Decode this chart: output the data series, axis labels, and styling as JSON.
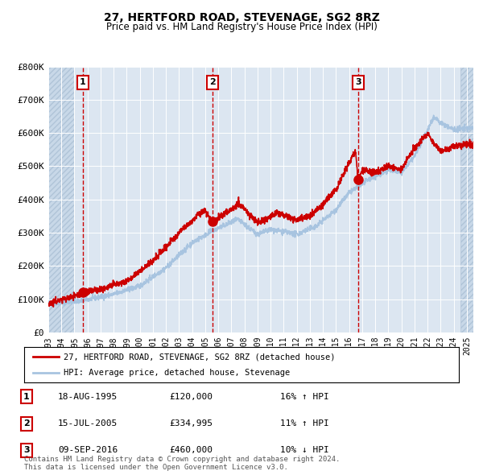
{
  "title1": "27, HERTFORD ROAD, STEVENAGE, SG2 8RZ",
  "title2": "Price paid vs. HM Land Registry's House Price Index (HPI)",
  "xlabel": "",
  "ylabel": "",
  "ylim": [
    0,
    800000
  ],
  "yticks": [
    0,
    100000,
    200000,
    300000,
    400000,
    500000,
    600000,
    700000,
    800000
  ],
  "ytick_labels": [
    "£0",
    "£100K",
    "£200K",
    "£300K",
    "£400K",
    "£500K",
    "£600K",
    "£700K",
    "£800K"
  ],
  "background_color": "#dce6f1",
  "plot_bg_color": "#dce6f1",
  "hatch_color": "#b8c8dc",
  "grid_color": "#ffffff",
  "hpi_line_color": "#a8c4e0",
  "price_line_color": "#cc0000",
  "sale_marker_color": "#cc0000",
  "vline_color": "#cc0000",
  "box_color": "#cc0000",
  "sales": [
    {
      "date_num": 1995.633,
      "price": 120000,
      "label": "1"
    },
    {
      "date_num": 2005.542,
      "price": 334995,
      "label": "2"
    },
    {
      "date_num": 2016.692,
      "price": 460000,
      "label": "3"
    }
  ],
  "legend_items": [
    {
      "label": "27, HERTFORD ROAD, STEVENAGE, SG2 8RZ (detached house)",
      "color": "#cc0000"
    },
    {
      "label": "HPI: Average price, detached house, Stevenage",
      "color": "#a8c4e0"
    }
  ],
  "table_rows": [
    {
      "num": "1",
      "date": "18-AUG-1995",
      "price": "£120,000",
      "hpi": "16% ↑ HPI"
    },
    {
      "num": "2",
      "date": "15-JUL-2005",
      "price": "£334,995",
      "hpi": "11% ↑ HPI"
    },
    {
      "num": "3",
      "date": "09-SEP-2016",
      "price": "£460,000",
      "hpi": "10% ↓ HPI"
    }
  ],
  "footnote1": "Contains HM Land Registry data © Crown copyright and database right 2024.",
  "footnote2": "This data is licensed under the Open Government Licence v3.0.",
  "xstart": 1993.0,
  "xend": 2025.5
}
